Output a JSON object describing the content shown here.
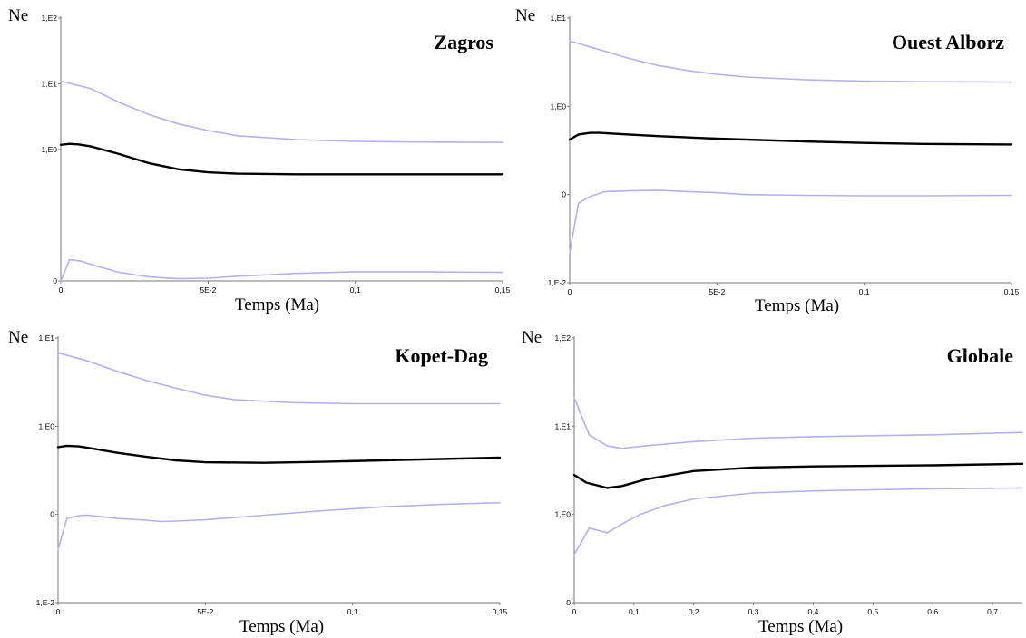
{
  "figure": {
    "colors": {
      "median": "#000000",
      "bounds": "#b4b1f0",
      "axis": "#777777",
      "text": "#000000"
    }
  },
  "chart_data": [
    {
      "type": "line",
      "title": "Zagros",
      "xlabel": "Temps (Ma)",
      "ylabel": "Ne",
      "y_scale": "log",
      "xlim": [
        0,
        0.15
      ],
      "ylim": [
        0.01,
        100
      ],
      "x_ticks": [
        {
          "v": 0,
          "label": "0"
        },
        {
          "v": 0.05,
          "label": "5E-2"
        },
        {
          "v": 0.1,
          "label": "0,1"
        },
        {
          "v": 0.15,
          "label": "0,15"
        }
      ],
      "y_ticks": [
        {
          "v": 0.01,
          "label": "0"
        },
        {
          "v": 1,
          "label": "1,E0"
        },
        {
          "v": 10,
          "label": "1,E1"
        },
        {
          "v": 100,
          "label": "1,E2"
        }
      ],
      "series": [
        {
          "role": "upper",
          "x": [
            0,
            0.01,
            0.02,
            0.03,
            0.04,
            0.05,
            0.06,
            0.08,
            0.1,
            0.12,
            0.15
          ],
          "y": [
            11,
            8.5,
            5.2,
            3.4,
            2.45,
            1.95,
            1.62,
            1.42,
            1.33,
            1.3,
            1.28
          ]
        },
        {
          "role": "median",
          "x": [
            0,
            0.003,
            0.006,
            0.01,
            0.02,
            0.03,
            0.04,
            0.05,
            0.06,
            0.08,
            0.1,
            0.12,
            0.15
          ],
          "y": [
            1.18,
            1.22,
            1.2,
            1.12,
            0.85,
            0.62,
            0.5,
            0.45,
            0.43,
            0.42,
            0.42,
            0.42,
            0.42
          ]
        },
        {
          "role": "lower",
          "x": [
            0,
            0.003,
            0.007,
            0.01,
            0.015,
            0.02,
            0.03,
            0.04,
            0.05,
            0.06,
            0.08,
            0.1,
            0.12,
            0.15
          ],
          "y": [
            0.01,
            0.021,
            0.02,
            0.018,
            0.0155,
            0.0135,
            0.0115,
            0.0108,
            0.011,
            0.0118,
            0.013,
            0.0138,
            0.0138,
            0.0135
          ]
        }
      ]
    },
    {
      "type": "line",
      "title": "Ouest Alborz",
      "xlabel": "Temps (Ma)",
      "ylabel": "Ne",
      "y_scale": "log",
      "xlim": [
        0,
        0.15
      ],
      "ylim": [
        0.01,
        10
      ],
      "x_ticks": [
        {
          "v": 0,
          "label": "0"
        },
        {
          "v": 0.05,
          "label": "5E-2"
        },
        {
          "v": 0.1,
          "label": "0,1"
        },
        {
          "v": 0.15,
          "label": "0,15"
        }
      ],
      "y_ticks": [
        {
          "v": 0.01,
          "label": "1,E-2"
        },
        {
          "v": 0.1,
          "label": "0"
        },
        {
          "v": 1,
          "label": "1,E0"
        },
        {
          "v": 10,
          "label": "1,E1"
        }
      ],
      "series": [
        {
          "role": "upper",
          "x": [
            0,
            0.01,
            0.02,
            0.03,
            0.04,
            0.05,
            0.06,
            0.08,
            0.1,
            0.12,
            0.15
          ],
          "y": [
            5.5,
            4.4,
            3.5,
            2.9,
            2.55,
            2.3,
            2.15,
            2.0,
            1.93,
            1.9,
            1.88
          ]
        },
        {
          "role": "median",
          "x": [
            0,
            0.003,
            0.007,
            0.01,
            0.02,
            0.03,
            0.05,
            0.08,
            0.1,
            0.12,
            0.15
          ],
          "y": [
            0.42,
            0.48,
            0.5,
            0.5,
            0.48,
            0.46,
            0.43,
            0.4,
            0.385,
            0.375,
            0.37
          ]
        },
        {
          "role": "lower",
          "x": [
            0,
            0.003,
            0.007,
            0.012,
            0.02,
            0.03,
            0.04,
            0.05,
            0.06,
            0.08,
            0.1,
            0.12,
            0.15
          ],
          "y": [
            0.022,
            0.08,
            0.095,
            0.108,
            0.11,
            0.112,
            0.108,
            0.105,
            0.1,
            0.098,
            0.097,
            0.097,
            0.098
          ]
        }
      ]
    },
    {
      "type": "line",
      "title": "Kopet-Dag",
      "xlabel": "Temps (Ma)",
      "ylabel": "Ne",
      "y_scale": "log",
      "xlim": [
        0,
        0.15
      ],
      "ylim": [
        0.01,
        10
      ],
      "x_ticks": [
        {
          "v": 0,
          "label": "0"
        },
        {
          "v": 0.05,
          "label": "5E-2"
        },
        {
          "v": 0.1,
          "label": "0,1"
        },
        {
          "v": 0.15,
          "label": "0,15"
        }
      ],
      "y_ticks": [
        {
          "v": 0.01,
          "label": "1,E-2"
        },
        {
          "v": 0.1,
          "label": "0"
        },
        {
          "v": 1,
          "label": "1,E0"
        },
        {
          "v": 10,
          "label": "1,E1"
        }
      ],
      "series": [
        {
          "role": "upper",
          "x": [
            0,
            0.01,
            0.02,
            0.03,
            0.04,
            0.05,
            0.06,
            0.08,
            0.1,
            0.12,
            0.15
          ],
          "y": [
            6.8,
            5.5,
            4.2,
            3.3,
            2.7,
            2.25,
            2.0,
            1.85,
            1.8,
            1.8,
            1.8
          ]
        },
        {
          "role": "median",
          "x": [
            0,
            0.003,
            0.007,
            0.01,
            0.02,
            0.03,
            0.04,
            0.05,
            0.07,
            0.09,
            0.11,
            0.13,
            0.15
          ],
          "y": [
            0.58,
            0.6,
            0.59,
            0.57,
            0.5,
            0.45,
            0.41,
            0.39,
            0.385,
            0.395,
            0.41,
            0.425,
            0.44
          ]
        },
        {
          "role": "lower",
          "x": [
            0,
            0.003,
            0.007,
            0.01,
            0.015,
            0.02,
            0.03,
            0.035,
            0.04,
            0.05,
            0.07,
            0.09,
            0.11,
            0.13,
            0.15
          ],
          "y": [
            0.04,
            0.09,
            0.097,
            0.098,
            0.094,
            0.09,
            0.086,
            0.083,
            0.084,
            0.087,
            0.098,
            0.11,
            0.122,
            0.13,
            0.136
          ]
        }
      ]
    },
    {
      "type": "line",
      "title": "Globale",
      "xlabel": "Temps (Ma)",
      "ylabel": "Ne",
      "y_scale": "log",
      "xlim": [
        0,
        0.75
      ],
      "ylim": [
        0.1,
        100
      ],
      "x_ticks": [
        {
          "v": 0,
          "label": "0"
        },
        {
          "v": 0.1,
          "label": "0,1"
        },
        {
          "v": 0.2,
          "label": "0,2"
        },
        {
          "v": 0.3,
          "label": "0,3"
        },
        {
          "v": 0.4,
          "label": "0,4"
        },
        {
          "v": 0.5,
          "label": "0,5"
        },
        {
          "v": 0.6,
          "label": "0,6"
        },
        {
          "v": 0.7,
          "label": "0,7"
        }
      ],
      "y_ticks": [
        {
          "v": 0.1,
          "label": "0"
        },
        {
          "v": 1,
          "label": "1,E0"
        },
        {
          "v": 10,
          "label": "1,E1"
        },
        {
          "v": 100,
          "label": "1,E2"
        }
      ],
      "series": [
        {
          "role": "upper",
          "x": [
            0,
            0.025,
            0.055,
            0.08,
            0.12,
            0.2,
            0.3,
            0.4,
            0.5,
            0.6,
            0.75
          ],
          "y": [
            21,
            8,
            6,
            5.6,
            6.0,
            6.7,
            7.3,
            7.6,
            7.8,
            8.0,
            8.5
          ]
        },
        {
          "role": "median",
          "x": [
            0,
            0.02,
            0.055,
            0.08,
            0.12,
            0.2,
            0.3,
            0.4,
            0.5,
            0.6,
            0.75
          ],
          "y": [
            2.8,
            2.3,
            2.0,
            2.1,
            2.5,
            3.1,
            3.4,
            3.5,
            3.55,
            3.6,
            3.75
          ]
        },
        {
          "role": "lower",
          "x": [
            0,
            0.025,
            0.055,
            0.08,
            0.11,
            0.15,
            0.2,
            0.3,
            0.4,
            0.5,
            0.6,
            0.75
          ],
          "y": [
            0.35,
            0.7,
            0.62,
            0.78,
            1.0,
            1.25,
            1.5,
            1.75,
            1.85,
            1.9,
            1.95,
            2.0
          ]
        }
      ]
    }
  ]
}
